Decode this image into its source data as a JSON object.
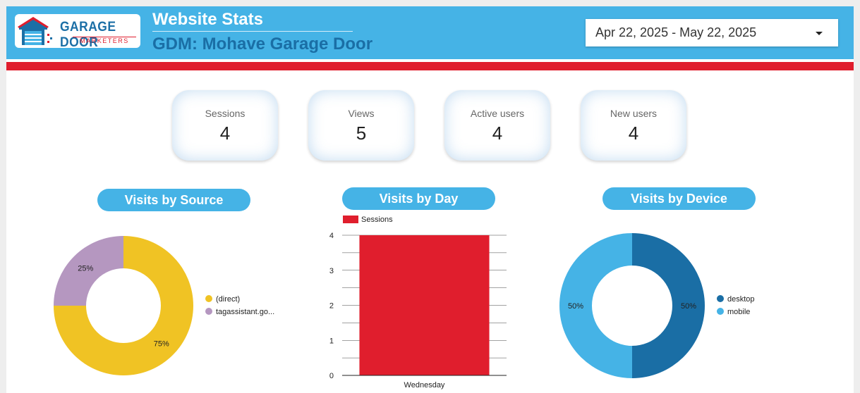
{
  "header": {
    "logo_main": "GARAGE DOOR",
    "logo_sub": "MARKETERS",
    "title": "Website Stats",
    "subtitle": "GDM: Mohave Garage Door",
    "date_range": "Apr 22, 2025 - May 22, 2025"
  },
  "colors": {
    "header_blue": "#45b3e6",
    "brand_red": "#e01e2d",
    "dark_blue": "#1a6ea5",
    "yellow": "#f0c324",
    "purple": "#b597c0",
    "desktop": "#1a6ea5",
    "mobile": "#45b3e6"
  },
  "kpis": [
    {
      "label": "Sessions",
      "value": "4"
    },
    {
      "label": "Views",
      "value": "5"
    },
    {
      "label": "Active users",
      "value": "4"
    },
    {
      "label": "New users",
      "value": "4"
    }
  ],
  "sections": {
    "source": "Visits by Source",
    "day": "Visits by Day",
    "device": "Visits by Device"
  },
  "chart_data": [
    {
      "type": "pie",
      "title": "Visits by Source",
      "labels": [
        "(direct)",
        "tagassistant.go..."
      ],
      "values": [
        75,
        25
      ],
      "data_labels": [
        "75%",
        "25%"
      ]
    },
    {
      "type": "bar",
      "title": "Visits by Day",
      "series": [
        {
          "name": "Sessions",
          "values": [
            4
          ]
        }
      ],
      "categories": [
        "Wednesday"
      ],
      "ylim": [
        0,
        4
      ],
      "yticks": [
        0,
        1,
        2,
        3,
        4
      ]
    },
    {
      "type": "pie",
      "title": "Visits by Device",
      "labels": [
        "desktop",
        "mobile"
      ],
      "values": [
        50,
        50
      ],
      "data_labels": [
        "50%",
        "50%"
      ]
    }
  ]
}
